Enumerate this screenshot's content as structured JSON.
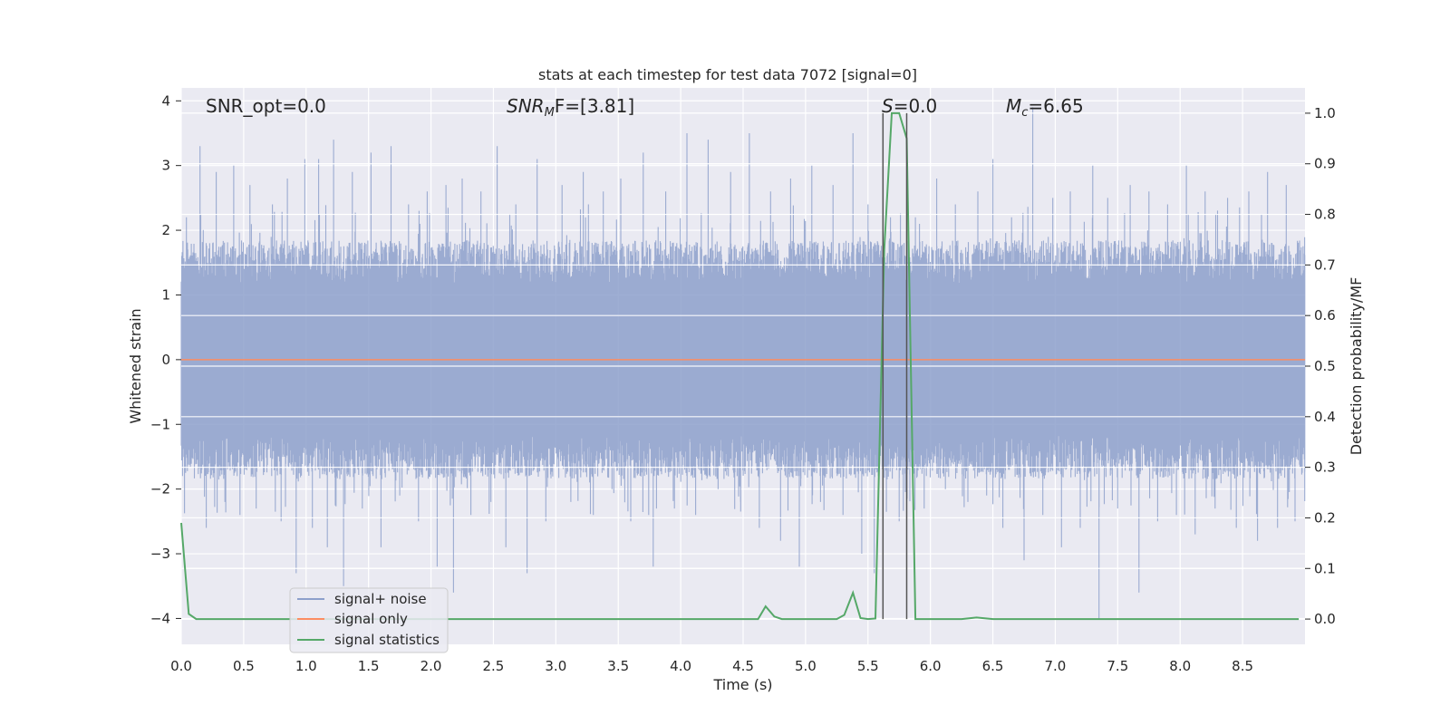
{
  "chart_data": {
    "type": "line",
    "title": "stats at each timestep for test data 7072 [signal=0]",
    "xlabel": "Time (s)",
    "ylabel_left": "Whitened strain",
    "ylabel_right": "Detection probability/MF",
    "xlim": [
      0.0,
      9.0
    ],
    "ylim_left": [
      -4.4,
      4.2
    ],
    "ylim_right": [
      -0.05,
      1.05
    ],
    "x_ticks": [
      "0.0",
      "0.5",
      "1.0",
      "1.5",
      "2.0",
      "2.5",
      "3.0",
      "3.5",
      "4.0",
      "4.5",
      "5.0",
      "5.5",
      "6.0",
      "6.5",
      "7.0",
      "7.5",
      "8.0",
      "8.5"
    ],
    "y_ticks_left": [
      "4",
      "3",
      "2",
      "1",
      "0",
      "−1",
      "−2",
      "−3",
      "−4"
    ],
    "y_ticks_right": [
      "1.0",
      "0.9",
      "0.8",
      "0.7",
      "0.6",
      "0.5",
      "0.4",
      "0.3",
      "0.2",
      "0.1",
      "0.0"
    ],
    "grid": true,
    "annotations": {
      "snr_opt": "SNR_opt=0.0",
      "snr_mf_main": "SNR",
      "snr_mf_sub": "M",
      "snr_mf_rest": "F=[3.81]",
      "s_main": "S",
      "s_rest": "=0.0",
      "mc_main": "M",
      "mc_sub": "c",
      "mc_rest": "=6.65"
    },
    "vlines": [
      5.62,
      5.81
    ],
    "legend": {
      "placement": "lower-left",
      "entries": [
        "signal+ noise",
        "signal only",
        "signal statistics"
      ]
    },
    "series": [
      {
        "name": "signal+ noise",
        "axis": "left",
        "color": "#8da0cb",
        "description_values": {
          "spikes": [
            [
              0.15,
              3.3
            ],
            [
              0.2,
              -2.6
            ],
            [
              0.28,
              2.9
            ],
            [
              0.35,
              -2.2
            ],
            [
              0.42,
              3.0
            ],
            [
              0.47,
              -2.4
            ],
            [
              0.55,
              2.7
            ],
            [
              0.6,
              -2.3
            ],
            [
              0.73,
              2.4
            ],
            [
              0.8,
              -2.5
            ],
            [
              0.85,
              2.8
            ],
            [
              0.92,
              -3.3
            ],
            [
              0.99,
              3.1
            ],
            [
              1.05,
              -2.6
            ],
            [
              1.1,
              3.1
            ],
            [
              1.17,
              -2.9
            ],
            [
              1.22,
              3.4
            ],
            [
              1.3,
              -3.5
            ],
            [
              1.37,
              2.9
            ],
            [
              1.45,
              -2.3
            ],
            [
              1.52,
              3.2
            ],
            [
              1.6,
              -2.9
            ],
            [
              1.68,
              3.3
            ],
            [
              1.75,
              -2.1
            ],
            [
              1.82,
              2.4
            ],
            [
              1.9,
              -2.5
            ],
            [
              1.97,
              2.6
            ],
            [
              2.05,
              -3.2
            ],
            [
              2.12,
              2.7
            ],
            [
              2.18,
              -3.6
            ],
            [
              2.25,
              2.8
            ],
            [
              2.32,
              -2.4
            ],
            [
              2.4,
              2.6
            ],
            [
              2.48,
              -2.2
            ],
            [
              2.53,
              3.3
            ],
            [
              2.6,
              -2.9
            ],
            [
              2.68,
              2.4
            ],
            [
              2.77,
              -3.3
            ],
            [
              2.85,
              3.1
            ],
            [
              2.92,
              -2.5
            ],
            [
              3.05,
              2.7
            ],
            [
              3.12,
              -2.2
            ],
            [
              3.22,
              2.9
            ],
            [
              3.3,
              -2.4
            ],
            [
              3.38,
              2.6
            ],
            [
              3.45,
              -2.0
            ],
            [
              3.52,
              2.8
            ],
            [
              3.6,
              -2.5
            ],
            [
              3.7,
              3.2
            ],
            [
              3.78,
              -3.2
            ],
            [
              3.88,
              2.6
            ],
            [
              3.95,
              -2.3
            ],
            [
              4.05,
              3.5
            ],
            [
              4.12,
              -2.4
            ],
            [
              4.22,
              3.4
            ],
            [
              4.3,
              -2.0
            ],
            [
              4.4,
              2.9
            ],
            [
              4.48,
              -2.2
            ],
            [
              4.55,
              3.5
            ],
            [
              4.63,
              -2.6
            ],
            [
              4.72,
              2.6
            ],
            [
              4.8,
              -2.8
            ],
            [
              4.88,
              2.8
            ],
            [
              4.95,
              -3.2
            ],
            [
              5.05,
              3.0
            ],
            [
              5.12,
              -2.2
            ],
            [
              5.22,
              2.7
            ],
            [
              5.3,
              -2.4
            ],
            [
              5.38,
              3.5
            ],
            [
              5.45,
              -3.0
            ],
            [
              5.5,
              2.4
            ],
            [
              5.55,
              -3.3
            ],
            [
              5.68,
              2.2
            ],
            [
              5.75,
              -2.5
            ],
            [
              5.88,
              2.2
            ],
            [
              5.95,
              -2.3
            ],
            [
              6.05,
              2.8
            ],
            [
              6.12,
              -2.0
            ],
            [
              6.2,
              2.4
            ],
            [
              6.3,
              -2.2
            ],
            [
              6.38,
              2.6
            ],
            [
              6.45,
              -2.1
            ],
            [
              6.5,
              3.1
            ],
            [
              6.58,
              -2.6
            ],
            [
              6.65,
              2.2
            ],
            [
              6.75,
              -3.1
            ],
            [
              6.82,
              3.9
            ],
            [
              6.9,
              -2.4
            ],
            [
              6.98,
              2.5
            ],
            [
              7.05,
              -2.9
            ],
            [
              7.12,
              2.6
            ],
            [
              7.2,
              -2.6
            ],
            [
              7.3,
              3.0
            ],
            [
              7.35,
              -4.0
            ],
            [
              7.42,
              2.5
            ],
            [
              7.5,
              -2.3
            ],
            [
              7.6,
              2.7
            ],
            [
              7.67,
              -3.6
            ],
            [
              7.75,
              2.6
            ],
            [
              7.82,
              -2.5
            ],
            [
              7.9,
              2.4
            ],
            [
              7.97,
              -2.4
            ],
            [
              8.05,
              3.0
            ],
            [
              8.12,
              -2.7
            ],
            [
              8.2,
              2.6
            ],
            [
              8.28,
              -2.3
            ],
            [
              8.38,
              2.5
            ],
            [
              8.45,
              -2.6
            ],
            [
              8.55,
              2.6
            ],
            [
              8.62,
              -2.8
            ],
            [
              8.7,
              2.9
            ],
            [
              8.78,
              -2.6
            ],
            [
              8.85,
              2.7
            ],
            [
              8.92,
              -2.5
            ]
          ],
          "envelope": 1.5
        }
      },
      {
        "name": "signal only",
        "axis": "left",
        "color": "#fc8d62",
        "x": [
          0.0,
          9.0
        ],
        "y": [
          0.0,
          0.0
        ]
      },
      {
        "name": "signal statistics",
        "axis": "right",
        "color": "#55a868",
        "x": [
          0.0,
          0.06,
          0.12,
          0.5,
          1.0,
          1.5,
          2.0,
          2.5,
          3.0,
          3.5,
          4.0,
          4.5,
          4.62,
          4.68,
          4.75,
          4.81,
          5.0,
          5.25,
          5.31,
          5.38,
          5.44,
          5.5,
          5.56,
          5.63,
          5.69,
          5.75,
          5.81,
          5.88,
          5.94,
          6.0,
          6.25,
          6.37,
          6.5,
          7.0,
          7.5,
          8.0,
          8.5,
          8.95
        ],
        "y": [
          0.19,
          0.01,
          0.0,
          0.0,
          0.0,
          0.0,
          0.0,
          0.0,
          0.0,
          0.0,
          0.0,
          0.0,
          0.0,
          0.025,
          0.005,
          0.0,
          0.0,
          0.0,
          0.008,
          0.052,
          0.002,
          0.0,
          0.001,
          0.73,
          1.0,
          1.0,
          0.95,
          0.0,
          0.0,
          0.0,
          0.0,
          0.003,
          0.0,
          0.0,
          0.0,
          0.0,
          0.0,
          0.0
        ]
      }
    ]
  }
}
